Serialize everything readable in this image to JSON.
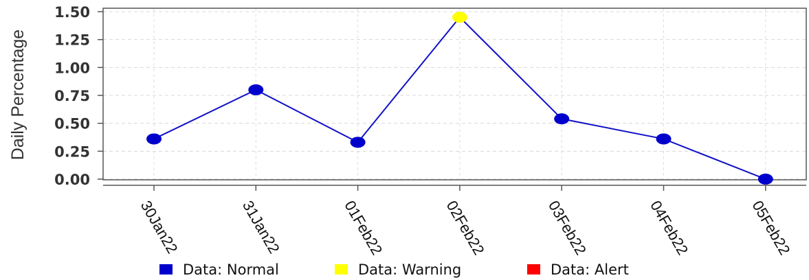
{
  "chart_data": {
    "type": "line",
    "ylabel": "Daily Percentage",
    "xlabel": "",
    "title": "",
    "categories": [
      "30Jan22",
      "31Jan22",
      "01Feb22",
      "02Feb22",
      "03Feb22",
      "04Feb22",
      "05Feb22"
    ],
    "values": [
      0.36,
      0.8,
      0.33,
      1.45,
      0.54,
      0.36,
      0.0
    ],
    "status": [
      "Normal",
      "Normal",
      "Normal",
      "Warning",
      "Normal",
      "Normal",
      "Normal"
    ],
    "ylim": [
      0,
      1.5
    ],
    "yticks": [
      "0.00",
      "0.25",
      "0.50",
      "0.75",
      "1.00",
      "1.25",
      "1.50"
    ],
    "grid": true,
    "legend_position": "bottom",
    "line_color": "#1010c8",
    "status_colors": {
      "Normal": "#0000cc",
      "Warning": "#ffff00",
      "Alert": "#ff0000"
    },
    "legend": [
      {
        "label": "Data: Normal",
        "color": "#0000cc"
      },
      {
        "label": "Data: Warning",
        "color": "#ffff00"
      },
      {
        "label": "Data: Alert",
        "color": "#ff0000"
      }
    ]
  }
}
